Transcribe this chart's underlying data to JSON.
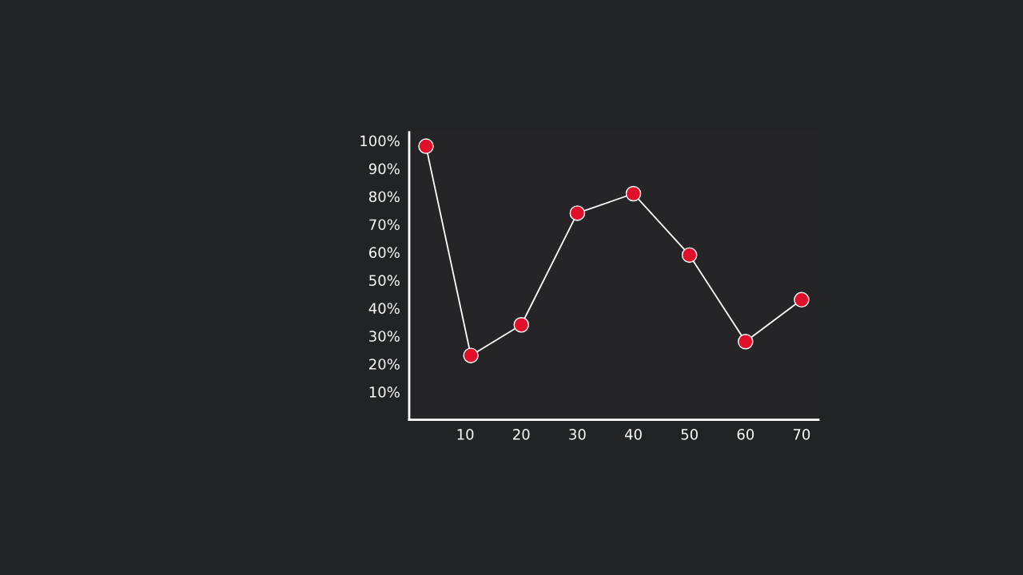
{
  "chart_data": {
    "type": "line",
    "x": [
      3,
      11,
      20,
      30,
      40,
      50,
      60,
      70
    ],
    "series": [
      {
        "color": "#e0102a",
        "values": [
          98,
          23,
          34,
          74,
          81,
          59,
          28,
          43
        ]
      }
    ],
    "marker": "circle",
    "xlim": [
      0,
      73
    ],
    "xticks": [
      10,
      20,
      30,
      40,
      50,
      60,
      70
    ],
    "ylim": [
      0,
      103
    ],
    "yticks": [
      {
        "value": 10,
        "label": "10%"
      },
      {
        "value": 20,
        "label": "20%"
      },
      {
        "value": 30,
        "label": "30%"
      },
      {
        "value": 40,
        "label": "40%"
      },
      {
        "value": 50,
        "label": "50%"
      },
      {
        "value": 60,
        "label": "60%"
      },
      {
        "value": 70,
        "label": "70%"
      },
      {
        "value": 80,
        "label": "80%"
      },
      {
        "value": 90,
        "label": "90%"
      },
      {
        "value": 100,
        "label": "100%"
      }
    ],
    "grid": false,
    "legend": false
  }
}
